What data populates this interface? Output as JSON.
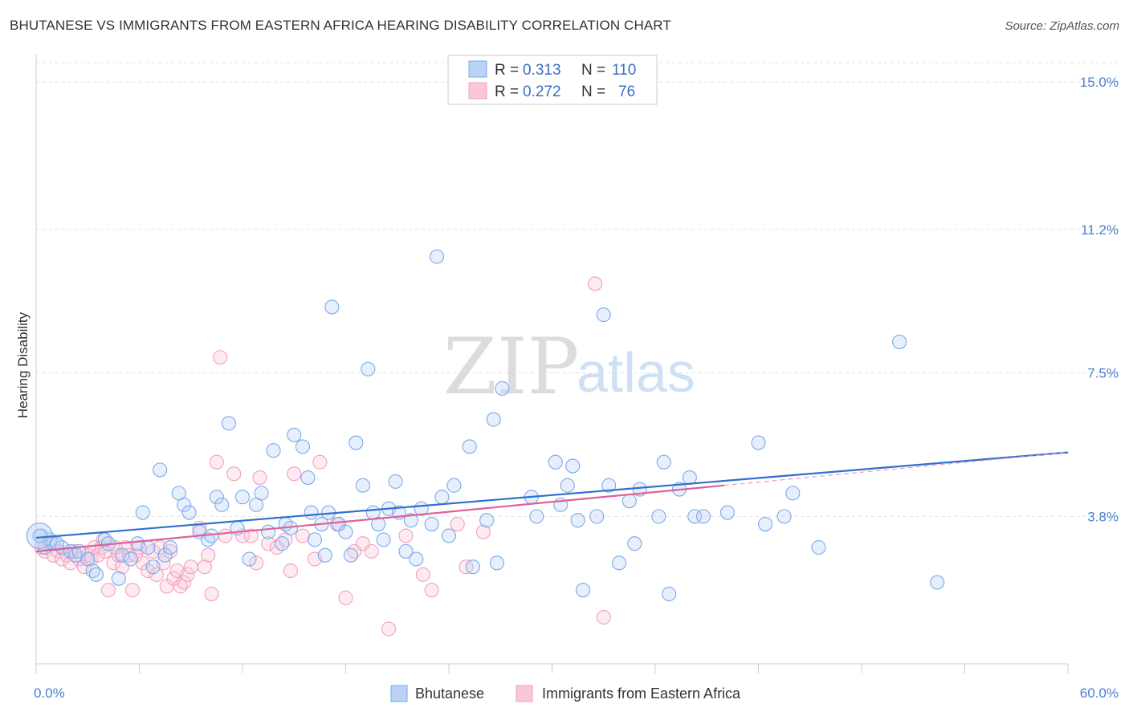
{
  "title": "BHUTANESE VS IMMIGRANTS FROM EASTERN AFRICA HEARING DISABILITY CORRELATION CHART",
  "source": "Source: ZipAtlas.com",
  "watermark": {
    "zip": "ZIP",
    "atlas": "atlas"
  },
  "legend": {
    "rows": [
      {
        "r_label": "R =",
        "r_value": "0.313",
        "n_label": "N =",
        "n_value": "110"
      },
      {
        "r_label": "R =",
        "r_value": "0.272",
        "n_label": "N =",
        "n_value": "76"
      }
    ]
  },
  "bottom_legend": [
    "Bhutanese",
    "Immigrants from Eastern Africa"
  ],
  "chart_data": {
    "type": "scatter",
    "xlabel": "",
    "ylabel": "Hearing Disability",
    "x_tick_labels": [
      "0.0%",
      "60.0%"
    ],
    "y_tick_labels": [
      "3.8%",
      "7.5%",
      "11.2%",
      "15.0%"
    ],
    "y_ticks": [
      3.8,
      7.5,
      11.2,
      15.0
    ],
    "xlim": [
      0,
      60
    ],
    "ylim": [
      0,
      15.5
    ],
    "grid": true,
    "colors": {
      "blue": "#7aaae8",
      "pink": "#f2a0bc",
      "blue_line": "#2f6fd0",
      "pink_line": "#e0609a"
    },
    "series": [
      {
        "name": "Bhutanese",
        "color": "#7aaae8",
        "trend": {
          "x": [
            0,
            60
          ],
          "y": [
            3.25,
            5.45
          ]
        },
        "points": [
          [
            0.3,
            3.3
          ],
          [
            0.5,
            3.0
          ],
          [
            0.8,
            3.2
          ],
          [
            1.0,
            3.1
          ],
          [
            1.5,
            3.0
          ],
          [
            2.0,
            2.9
          ],
          [
            2.3,
            2.8
          ],
          [
            2.5,
            2.9
          ],
          [
            3.0,
            2.7
          ],
          [
            3.3,
            2.4
          ],
          [
            3.5,
            2.3
          ],
          [
            4.0,
            3.2
          ],
          [
            4.2,
            3.1
          ],
          [
            4.8,
            2.2
          ],
          [
            5.0,
            2.8
          ],
          [
            5.5,
            2.7
          ],
          [
            5.9,
            3.1
          ],
          [
            6.2,
            3.9
          ],
          [
            6.5,
            3.0
          ],
          [
            6.8,
            2.5
          ],
          [
            7.2,
            5.0
          ],
          [
            7.5,
            2.8
          ],
          [
            7.8,
            3.0
          ],
          [
            8.3,
            4.4
          ],
          [
            8.6,
            4.1
          ],
          [
            8.9,
            3.9
          ],
          [
            9.5,
            3.4
          ],
          [
            10.0,
            3.2
          ],
          [
            10.2,
            3.3
          ],
          [
            10.5,
            4.3
          ],
          [
            10.8,
            4.1
          ],
          [
            11.2,
            6.2
          ],
          [
            11.7,
            3.5
          ],
          [
            12.0,
            4.3
          ],
          [
            12.4,
            2.7
          ],
          [
            12.8,
            4.1
          ],
          [
            13.1,
            4.4
          ],
          [
            13.5,
            3.4
          ],
          [
            13.8,
            5.5
          ],
          [
            14.3,
            3.1
          ],
          [
            14.5,
            3.6
          ],
          [
            14.8,
            3.5
          ],
          [
            15.0,
            5.9
          ],
          [
            15.5,
            5.6
          ],
          [
            15.8,
            4.8
          ],
          [
            16.0,
            3.9
          ],
          [
            16.2,
            3.2
          ],
          [
            16.6,
            3.6
          ],
          [
            16.8,
            2.8
          ],
          [
            17.0,
            3.9
          ],
          [
            17.2,
            9.2
          ],
          [
            17.6,
            3.6
          ],
          [
            18.0,
            3.4
          ],
          [
            18.3,
            2.8
          ],
          [
            18.6,
            5.7
          ],
          [
            19.0,
            4.6
          ],
          [
            19.3,
            7.6
          ],
          [
            19.6,
            3.9
          ],
          [
            19.9,
            3.6
          ],
          [
            20.2,
            3.2
          ],
          [
            20.5,
            4.0
          ],
          [
            20.9,
            4.7
          ],
          [
            21.1,
            3.9
          ],
          [
            21.5,
            2.9
          ],
          [
            21.8,
            3.7
          ],
          [
            22.1,
            2.7
          ],
          [
            22.4,
            4.0
          ],
          [
            23.0,
            3.6
          ],
          [
            23.3,
            10.5
          ],
          [
            23.6,
            4.3
          ],
          [
            24.0,
            3.3
          ],
          [
            24.3,
            4.6
          ],
          [
            25.2,
            5.6
          ],
          [
            25.4,
            2.5
          ],
          [
            26.2,
            3.7
          ],
          [
            26.6,
            6.3
          ],
          [
            26.8,
            2.6
          ],
          [
            27.1,
            7.1
          ],
          [
            28.8,
            4.3
          ],
          [
            29.1,
            3.8
          ],
          [
            30.2,
            5.2
          ],
          [
            30.5,
            4.1
          ],
          [
            30.9,
            4.6
          ],
          [
            31.2,
            5.1
          ],
          [
            31.5,
            3.7
          ],
          [
            31.8,
            1.9
          ],
          [
            32.6,
            3.8
          ],
          [
            33.0,
            9.0
          ],
          [
            33.3,
            4.6
          ],
          [
            33.9,
            2.6
          ],
          [
            34.5,
            4.2
          ],
          [
            34.8,
            3.1
          ],
          [
            35.1,
            4.5
          ],
          [
            36.2,
            3.8
          ],
          [
            36.5,
            5.2
          ],
          [
            36.8,
            1.8
          ],
          [
            37.4,
            4.5
          ],
          [
            38.0,
            4.8
          ],
          [
            38.3,
            3.8
          ],
          [
            38.8,
            3.8
          ],
          [
            40.2,
            3.9
          ],
          [
            42.0,
            5.7
          ],
          [
            42.4,
            3.6
          ],
          [
            43.5,
            3.8
          ],
          [
            44.0,
            4.4
          ],
          [
            45.5,
            3.0
          ],
          [
            50.2,
            8.3
          ],
          [
            52.4,
            2.1
          ],
          [
            0.2,
            3.3
          ],
          [
            1.2,
            3.1
          ]
        ]
      },
      {
        "name": "Immigrants from Eastern Africa",
        "color": "#f2a0bc",
        "trend": {
          "x": [
            0,
            40
          ],
          "y": [
            2.9,
            4.6
          ]
        },
        "points": [
          [
            0.3,
            3.0
          ],
          [
            0.5,
            2.9
          ],
          [
            0.8,
            3.1
          ],
          [
            1.0,
            2.8
          ],
          [
            1.3,
            2.9
          ],
          [
            1.5,
            2.7
          ],
          [
            1.8,
            2.8
          ],
          [
            2.0,
            2.6
          ],
          [
            2.2,
            2.9
          ],
          [
            2.5,
            2.7
          ],
          [
            2.8,
            2.5
          ],
          [
            3.0,
            2.8
          ],
          [
            3.2,
            2.7
          ],
          [
            3.4,
            3.0
          ],
          [
            3.6,
            2.8
          ],
          [
            3.8,
            3.0
          ],
          [
            4.0,
            2.9
          ],
          [
            4.2,
            1.9
          ],
          [
            4.5,
            2.6
          ],
          [
            4.8,
            2.8
          ],
          [
            5.0,
            2.5
          ],
          [
            5.2,
            3.0
          ],
          [
            5.4,
            2.8
          ],
          [
            5.6,
            1.9
          ],
          [
            5.8,
            2.8
          ],
          [
            6.0,
            3.0
          ],
          [
            6.2,
            2.6
          ],
          [
            6.5,
            2.4
          ],
          [
            6.8,
            2.9
          ],
          [
            7.0,
            2.3
          ],
          [
            7.2,
            3.0
          ],
          [
            7.4,
            2.6
          ],
          [
            7.6,
            2.0
          ],
          [
            7.8,
            2.9
          ],
          [
            8.0,
            2.2
          ],
          [
            8.2,
            2.4
          ],
          [
            8.4,
            2.0
          ],
          [
            8.6,
            2.1
          ],
          [
            8.8,
            2.3
          ],
          [
            9.0,
            2.5
          ],
          [
            9.5,
            3.5
          ],
          [
            9.8,
            2.5
          ],
          [
            10.0,
            2.8
          ],
          [
            10.2,
            1.8
          ],
          [
            10.5,
            5.2
          ],
          [
            10.7,
            7.9
          ],
          [
            11.0,
            3.3
          ],
          [
            11.5,
            4.9
          ],
          [
            12.0,
            3.3
          ],
          [
            12.5,
            3.3
          ],
          [
            12.8,
            2.6
          ],
          [
            13.0,
            4.8
          ],
          [
            13.5,
            3.1
          ],
          [
            14.0,
            3.0
          ],
          [
            14.5,
            3.2
          ],
          [
            14.8,
            2.4
          ],
          [
            15.0,
            4.9
          ],
          [
            15.5,
            3.3
          ],
          [
            16.2,
            2.7
          ],
          [
            16.5,
            5.2
          ],
          [
            17.5,
            3.6
          ],
          [
            18.0,
            1.7
          ],
          [
            18.5,
            2.9
          ],
          [
            19.0,
            3.1
          ],
          [
            19.5,
            2.9
          ],
          [
            20.5,
            0.9
          ],
          [
            21.5,
            3.3
          ],
          [
            22.5,
            2.3
          ],
          [
            23.0,
            1.9
          ],
          [
            24.5,
            3.6
          ],
          [
            25.0,
            2.5
          ],
          [
            26.0,
            3.4
          ],
          [
            32.5,
            9.8
          ],
          [
            33.0,
            1.2
          ],
          [
            3.9,
            3.2
          ],
          [
            4.6,
            3.0
          ]
        ]
      }
    ]
  }
}
